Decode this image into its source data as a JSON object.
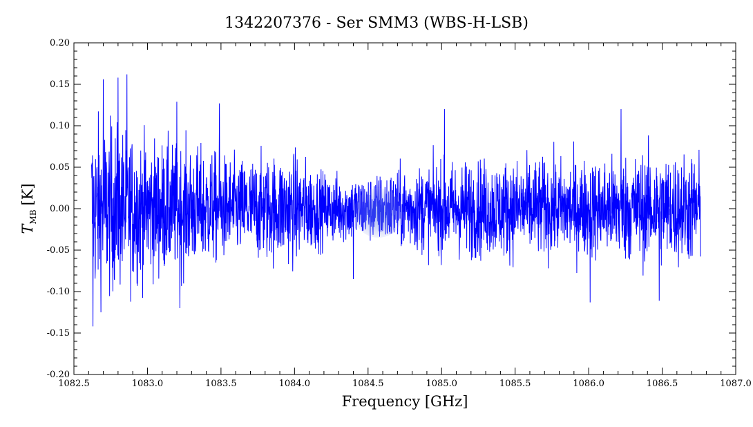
{
  "chart_data": {
    "type": "line",
    "title": "1342207376 - Ser SMM3 (WBS-H-LSB)",
    "xlabel": "Frequency [GHz]",
    "ylabel": {
      "symbol": "T",
      "subscript": "MB",
      "unit": "[K]"
    },
    "xlim": [
      1082.5,
      1087.0
    ],
    "ylim": [
      -0.2,
      0.2
    ],
    "x_ticks": [
      "1082.5",
      "1083.0",
      "1083.5",
      "1084.0",
      "1084.5",
      "1085.0",
      "1085.5",
      "1086.0",
      "1086.5",
      "1087.0"
    ],
    "y_ticks": [
      "-0.20",
      "-0.15",
      "-0.10",
      "-0.05",
      "0.00",
      "0.05",
      "0.10",
      "0.15",
      "0.20"
    ],
    "grid": false,
    "series": [
      {
        "color": "#0000ff",
        "x_range": [
          1082.62,
          1086.76
        ],
        "noise_envelope": {
          "x": [
            1082.62,
            1082.8,
            1083.0,
            1083.3,
            1083.6,
            1084.0,
            1084.2,
            1084.5,
            1084.8,
            1085.2,
            1085.6,
            1086.0,
            1086.4,
            1086.76
          ],
          "sigma": [
            0.055,
            0.05,
            0.042,
            0.038,
            0.03,
            0.034,
            0.022,
            0.02,
            0.026,
            0.03,
            0.03,
            0.03,
            0.034,
            0.034
          ]
        },
        "peaks": [
          {
            "x": 1082.86,
            "y": 0.162
          },
          {
            "x": 1082.8,
            "y": 0.158
          },
          {
            "x": 1082.7,
            "y": 0.156
          },
          {
            "x": 1082.63,
            "y": -0.142
          },
          {
            "x": 1083.2,
            "y": 0.129
          },
          {
            "x": 1083.49,
            "y": 0.127
          },
          {
            "x": 1083.22,
            "y": -0.12
          },
          {
            "x": 1085.02,
            "y": 0.12
          },
          {
            "x": 1086.01,
            "y": -0.113
          },
          {
            "x": 1086.48,
            "y": -0.111
          },
          {
            "x": 1086.22,
            "y": 0.12
          },
          {
            "x": 1084.4,
            "y": -0.085
          }
        ]
      }
    ],
    "watermark": {
      "x": 1084.57,
      "y": -0.005
    }
  }
}
